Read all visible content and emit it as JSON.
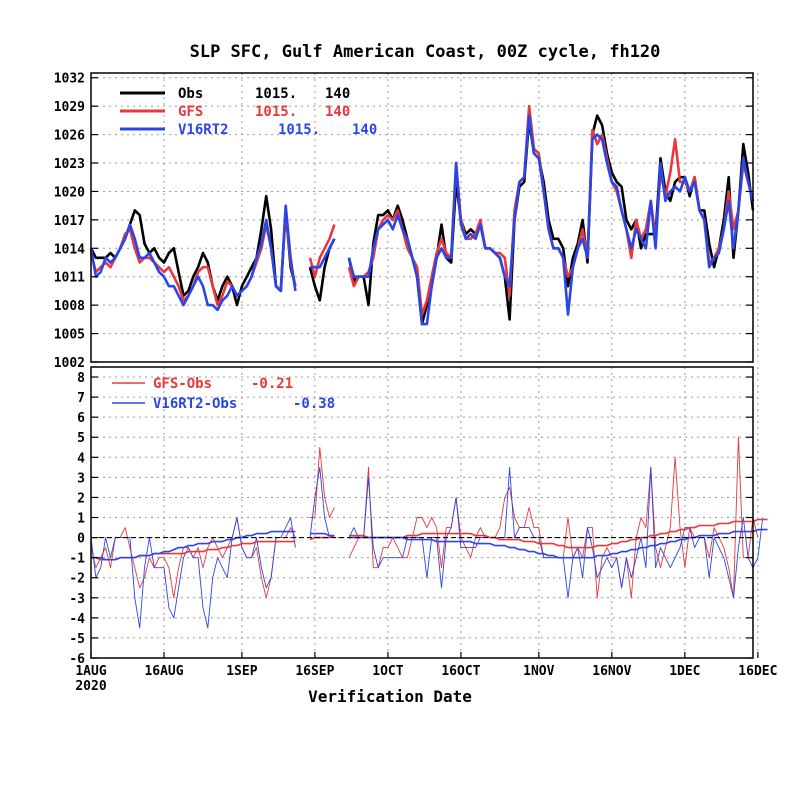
{
  "title": "SLP SFC, Gulf American Coast, 00Z cycle, fh120",
  "xlabel": "Verification Date",
  "x_ticks": [
    "1AUG",
    "16AUG",
    "1SEP",
    "16SEP",
    "1OCT",
    "16OCT",
    "1NOV",
    "16NOV",
    "1DEC",
    "16DEC"
  ],
  "x_year": "2020",
  "colors": {
    "obs": "#000000",
    "gfs": "#e8383b",
    "v16": "#2a46e8"
  },
  "chart_data": [
    {
      "type": "line",
      "ylim": [
        1002,
        1032.5
      ],
      "yticks": [
        1002,
        1005,
        1008,
        1011,
        1014,
        1017,
        1020,
        1023,
        1026,
        1029,
        1032
      ],
      "grid": true,
      "legend_position": "top-left",
      "legend": [
        {
          "label": "Obs",
          "mean": "1015.",
          "count": "140"
        },
        {
          "label": "GFS",
          "mean": "1015.",
          "count": "140"
        },
        {
          "label": "V16RT2",
          "mean": "1015.",
          "count": "140"
        }
      ],
      "x_start": "2020-08-01",
      "series": [
        {
          "name": "Obs",
          "values": [
            1014,
            1013,
            1013,
            1013,
            1013.5,
            1013,
            1014,
            1015,
            1016.5,
            1018,
            1017.5,
            1014.5,
            1013.5,
            1014,
            1013,
            1012.5,
            1013.5,
            1014,
            1011.5,
            1009,
            1009.5,
            1011,
            1012,
            1013.5,
            1012.5,
            1010,
            1008.5,
            1010,
            1011,
            1010,
            1008,
            1010,
            1011,
            1012,
            1013,
            1016,
            1019.5,
            1016,
            1010,
            1009.5,
            1018,
            1012,
            1010,
            null,
            null,
            1012,
            1010,
            1008.5,
            1012,
            1014,
            1015,
            null,
            null,
            1013,
            1010.5,
            1011,
            1011,
            1008,
            1014.5,
            1017.5,
            1017.5,
            1018,
            1017,
            1018.5,
            1017,
            1015,
            1013,
            1011,
            1006,
            1008,
            1010,
            1013,
            1016.5,
            1013,
            1012.5,
            1021,
            1017,
            1015.5,
            1016,
            1015.5,
            1016.5,
            1014,
            1014,
            1013.5,
            1013,
            1011,
            1006.5,
            1017,
            1020.5,
            1021,
            1027.5,
            1024,
            1023.5,
            1021,
            1017,
            1015,
            1015,
            1014,
            1010,
            1013,
            1014.5,
            1017,
            1012.5,
            1026,
            1028,
            1027,
            1024,
            1022,
            1021,
            1020.5,
            1017,
            1016,
            1017,
            1014,
            1015.5,
            1015.5,
            1015.5,
            1023.5,
            1020,
            1019,
            1021,
            1021.5,
            1021.5,
            1019.5,
            1021.5,
            1018,
            1018,
            1014.5,
            1012,
            1014,
            1017,
            1021.5,
            1013,
            1018,
            1025,
            1022,
            1018
          ]
        },
        {
          "name": "GFS",
          "values": [
            1013.5,
            1011.5,
            1012,
            1012.5,
            1012,
            1013,
            1014,
            1015.5,
            1016,
            1014,
            1012.5,
            1013,
            1013,
            1012.5,
            1012,
            1011.5,
            1012,
            1011,
            1010,
            1008.5,
            1009,
            1010,
            1011.5,
            1012,
            1012,
            1010,
            1008,
            1009,
            1010.5,
            1010,
            1009,
            1009.5,
            1010,
            1011,
            1012.5,
            1014,
            1016.5,
            1014,
            1010,
            1009.5,
            1018,
            1012.5,
            1010,
            null,
            null,
            1013,
            1011,
            1013,
            1014,
            1015,
            1016.5,
            null,
            null,
            1012,
            1010,
            1011,
            1011,
            1011.5,
            1013,
            1016,
            1017,
            1017.5,
            1017,
            1018,
            1016,
            1014,
            1013,
            1012,
            1007,
            1008.5,
            1011,
            1013.5,
            1015,
            1013.5,
            1013,
            1023,
            1017,
            1015,
            1015,
            1015.5,
            1017,
            1014,
            1014,
            1013.5,
            1013.5,
            1013,
            1009,
            1018,
            1021,
            1021.5,
            1029,
            1024.5,
            1024,
            1020,
            1016,
            1014,
            1014,
            1013,
            1011,
            1012,
            1014,
            1016,
            1013,
            1026.5,
            1025,
            1026,
            1023.5,
            1021,
            1020,
            1018,
            1016,
            1013,
            1017,
            1015,
            1016,
            1019,
            1015,
            1022,
            1019.5,
            1022,
            1025.5,
            1021,
            1021,
            1020,
            1021.5,
            1018,
            1017,
            1012.5,
            1013,
            1014,
            1016,
            1020,
            1016,
            1018,
            1023,
            1021,
            1019
          ]
        },
        {
          "name": "V16RT2",
          "values": [
            1014,
            1011,
            1011.5,
            1013,
            1012.5,
            1013,
            1014,
            1015,
            1016.5,
            1015,
            1013,
            1013,
            1013.5,
            1012.5,
            1011.5,
            1011,
            1010,
            1010,
            1009,
            1008,
            1009,
            1010,
            1011,
            1010,
            1008,
            1008,
            1007.5,
            1008.5,
            1009,
            1010,
            1009,
            1009.5,
            1010,
            1011,
            1013,
            1014.5,
            1017,
            1014,
            1010,
            1009.5,
            1018.5,
            1013,
            1009.5,
            null,
            null,
            1012,
            1012,
            1012,
            1013,
            1014,
            1015,
            null,
            null,
            1013,
            1011,
            1011,
            1011,
            1011,
            1014,
            1016,
            1016.5,
            1017,
            1016,
            1017.5,
            1016,
            1015,
            1013,
            1011,
            1006,
            1006,
            1010,
            1013,
            1014,
            1013,
            1013,
            1023,
            1016.5,
            1015,
            1015.5,
            1015,
            1016.5,
            1014,
            1014,
            1013.5,
            1013,
            1011,
            1010,
            1017,
            1021,
            1021.5,
            1028,
            1024,
            1023.5,
            1020,
            1016,
            1014,
            1014,
            1013,
            1007,
            1012,
            1014,
            1015,
            1013,
            1025.5,
            1026,
            1025.5,
            1023,
            1021,
            1020.5,
            1018,
            1016,
            1014,
            1016,
            1015,
            1014,
            1019,
            1014,
            1023,
            1019,
            1020,
            1020.5,
            1020,
            1021.5,
            1020,
            1021,
            1018,
            1017,
            1012,
            1013,
            1013.5,
            1016,
            1019,
            1014,
            1018,
            1023.5,
            1021,
            1019
          ]
        }
      ]
    },
    {
      "type": "line",
      "ylim": [
        -6,
        8.5
      ],
      "yticks": [
        -6,
        -5,
        -4,
        -3,
        -2,
        -1,
        0,
        1,
        2,
        3,
        4,
        5,
        6,
        7,
        8
      ],
      "grid": true,
      "legend_position": "top-left",
      "legend": [
        {
          "label": "GFS-Obs",
          "mean": "-0.21"
        },
        {
          "label": "V16RT2-Obs",
          "mean": "-0.38"
        }
      ],
      "series": [
        {
          "name": "GFS-Obs",
          "values": [
            -0.5,
            -1.5,
            -1,
            -0.5,
            -1.5,
            0,
            0,
            0.5,
            -0.5,
            -1.5,
            -2.5,
            -2,
            -1,
            -1.5,
            -1,
            -1,
            -1.5,
            -3,
            -1.5,
            -0.5,
            -0.5,
            -1,
            -0.5,
            -1.5,
            -0.5,
            0,
            -0.5,
            -1,
            -0.5,
            0,
            1,
            -0.5,
            -1,
            -1,
            -0.5,
            -2,
            -3,
            -2,
            0,
            0,
            0,
            0.5,
            0,
            null,
            null,
            1,
            1,
            4.5,
            2,
            1,
            1.5,
            null,
            null,
            -1,
            -0.5,
            0,
            0,
            3.5,
            -1.5,
            -1.5,
            -0.5,
            -0.5,
            0,
            -0.5,
            -1,
            -1,
            0,
            1,
            1,
            0.5,
            1,
            0.5,
            -1.5,
            0.5,
            0.5,
            2,
            0,
            -0.5,
            -1,
            0,
            0.5,
            0,
            0,
            0,
            0.5,
            2,
            2.5,
            1,
            0.5,
            0.5,
            1.5,
            0.5,
            0.5,
            -1,
            -1,
            -1,
            -1,
            -1,
            1,
            -1,
            -0.5,
            -1,
            0.5,
            0.5,
            -3,
            -1,
            -0.5,
            -1,
            -1,
            -2.5,
            -1,
            -3,
            0,
            1,
            0.5,
            3.5,
            -0.5,
            -1.5,
            -0.5,
            0.5,
            4,
            0.5,
            -1.5,
            0.5,
            0,
            0,
            0,
            -1,
            0.5,
            0,
            -0.5,
            -1.5,
            -3,
            5,
            -1,
            -1,
            1,
            0
          ]
        },
        {
          "name": "V16RT2-Obs",
          "values": [
            0,
            -2,
            -1.5,
            0,
            -1,
            0,
            0,
            0,
            0,
            -3,
            -4.5,
            -1.5,
            0,
            -1.5,
            -1.5,
            -1.5,
            -3.5,
            -4,
            -2.5,
            -1,
            -0.5,
            -1,
            -1,
            -3.5,
            -4.5,
            -2,
            -1,
            -1.5,
            -2,
            0,
            1,
            -0.5,
            -1,
            -1,
            0,
            -1.5,
            -2.5,
            -2,
            0,
            0,
            0.5,
            1,
            -0.5,
            null,
            null,
            0,
            2,
            3.5,
            1,
            0,
            0,
            null,
            null,
            0,
            0.5,
            0,
            0,
            3,
            -0.5,
            -1.5,
            -1,
            -1,
            -1,
            -1,
            -1,
            0,
            0,
            0,
            0,
            -2,
            0,
            0,
            -2.5,
            0,
            0.5,
            2,
            -0.5,
            -0.5,
            -0.5,
            -0.5,
            0,
            0,
            0,
            0,
            0,
            0,
            3.5,
            0,
            0.5,
            0.5,
            0.5,
            0,
            0,
            -1,
            -1,
            -1,
            -1,
            -1,
            -3,
            -1,
            -0.5,
            -2,
            0.5,
            -0.5,
            -2,
            -1.5,
            -1,
            -1.5,
            -1,
            -2.5,
            -1,
            -2,
            -1,
            0,
            -1.5,
            3.5,
            -1.5,
            -0.5,
            -1,
            -1.5,
            -1,
            -0.5,
            0.5,
            0.5,
            -0.5,
            0,
            0,
            -2,
            0,
            -0.5,
            -1,
            -2,
            -3,
            -0.5,
            1,
            -1,
            -1.5,
            -1,
            1
          ]
        },
        {
          "name": "GFS-Obs mean",
          "values": [
            -1.0,
            -1.0,
            -1.1,
            -1.1,
            -1.1,
            -1.1,
            -1.0,
            -1.0,
            -1.0,
            -1.0,
            -0.9,
            -0.9,
            -0.9,
            -0.8,
            -0.8,
            -0.8,
            -0.8,
            -0.8,
            -0.8,
            -0.8,
            -0.7,
            -0.7,
            -0.7,
            -0.7,
            -0.6,
            -0.6,
            -0.6,
            -0.5,
            -0.5,
            -0.4,
            -0.4,
            -0.3,
            -0.3,
            -0.3,
            -0.2,
            -0.2,
            -0.2,
            -0.2,
            -0.2,
            -0.2,
            -0.2,
            -0.2,
            -0.2,
            null,
            null,
            -0.1,
            0.0,
            0.0,
            0.0,
            0.0,
            0.1,
            null,
            null,
            0.1,
            0.1,
            0.1,
            0.1,
            0.0,
            0.0,
            0.0,
            0.0,
            0.0,
            0.0,
            0.0,
            0.0,
            0.1,
            0.1,
            0.1,
            0.2,
            0.2,
            0.2,
            0.2,
            0.2,
            0.2,
            0.2,
            0.2,
            0.2,
            0.2,
            0.2,
            0.1,
            0.1,
            0.1,
            0.0,
            0.0,
            -0.1,
            -0.1,
            -0.1,
            -0.1,
            -0.1,
            -0.2,
            -0.2,
            -0.2,
            -0.3,
            -0.3,
            -0.3,
            -0.3,
            -0.4,
            -0.4,
            -0.5,
            -0.5,
            -0.5,
            -0.5,
            -0.5,
            -0.5,
            -0.4,
            -0.4,
            -0.4,
            -0.3,
            -0.3,
            -0.2,
            -0.2,
            -0.1,
            -0.1,
            0.0,
            0.0,
            0.1,
            0.1,
            0.2,
            0.2,
            0.3,
            0.3,
            0.4,
            0.4,
            0.5,
            0.5,
            0.6,
            0.6,
            0.6,
            0.6,
            0.7,
            0.7,
            0.7,
            0.8,
            0.8,
            0.8,
            0.8,
            0.8,
            0.9,
            0.9,
            0.9
          ]
        },
        {
          "name": "V16RT2-Obs mean",
          "values": [
            -1.0,
            -1.0,
            -1.0,
            -1.1,
            -1.1,
            -1.1,
            -1.0,
            -1.0,
            -1.0,
            -1.0,
            -0.9,
            -0.9,
            -0.9,
            -0.8,
            -0.8,
            -0.7,
            -0.7,
            -0.6,
            -0.5,
            -0.5,
            -0.4,
            -0.4,
            -0.3,
            -0.3,
            -0.3,
            -0.2,
            -0.2,
            -0.2,
            -0.1,
            -0.1,
            0.0,
            0.0,
            0.1,
            0.1,
            0.2,
            0.2,
            0.2,
            0.3,
            0.3,
            0.3,
            0.3,
            0.3,
            0.3,
            null,
            null,
            0.2,
            0.2,
            0.2,
            0.2,
            0.1,
            0.1,
            null,
            null,
            0.0,
            0.0,
            0.0,
            0.0,
            0.0,
            0.0,
            0.0,
            0.0,
            0.0,
            0.0,
            0.0,
            0.0,
            -0.1,
            -0.1,
            -0.1,
            -0.1,
            -0.1,
            -0.1,
            -0.2,
            -0.2,
            -0.2,
            -0.2,
            -0.2,
            -0.2,
            -0.2,
            -0.2,
            -0.3,
            -0.3,
            -0.3,
            -0.3,
            -0.4,
            -0.4,
            -0.4,
            -0.5,
            -0.5,
            -0.6,
            -0.6,
            -0.7,
            -0.7,
            -0.8,
            -0.8,
            -0.9,
            -0.9,
            -1.0,
            -1.0,
            -1.0,
            -1.0,
            -1.0,
            -1.0,
            -1.0,
            -1.0,
            -0.9,
            -0.9,
            -0.9,
            -0.8,
            -0.8,
            -0.7,
            -0.7,
            -0.6,
            -0.6,
            -0.5,
            -0.5,
            -0.4,
            -0.4,
            -0.3,
            -0.3,
            -0.2,
            -0.2,
            -0.1,
            -0.1,
            0.0,
            0.0,
            0.1,
            0.1,
            0.1,
            0.1,
            0.2,
            0.2,
            0.2,
            0.3,
            0.3,
            0.3,
            0.3,
            0.3,
            0.4,
            0.4,
            0.4
          ]
        }
      ]
    }
  ]
}
